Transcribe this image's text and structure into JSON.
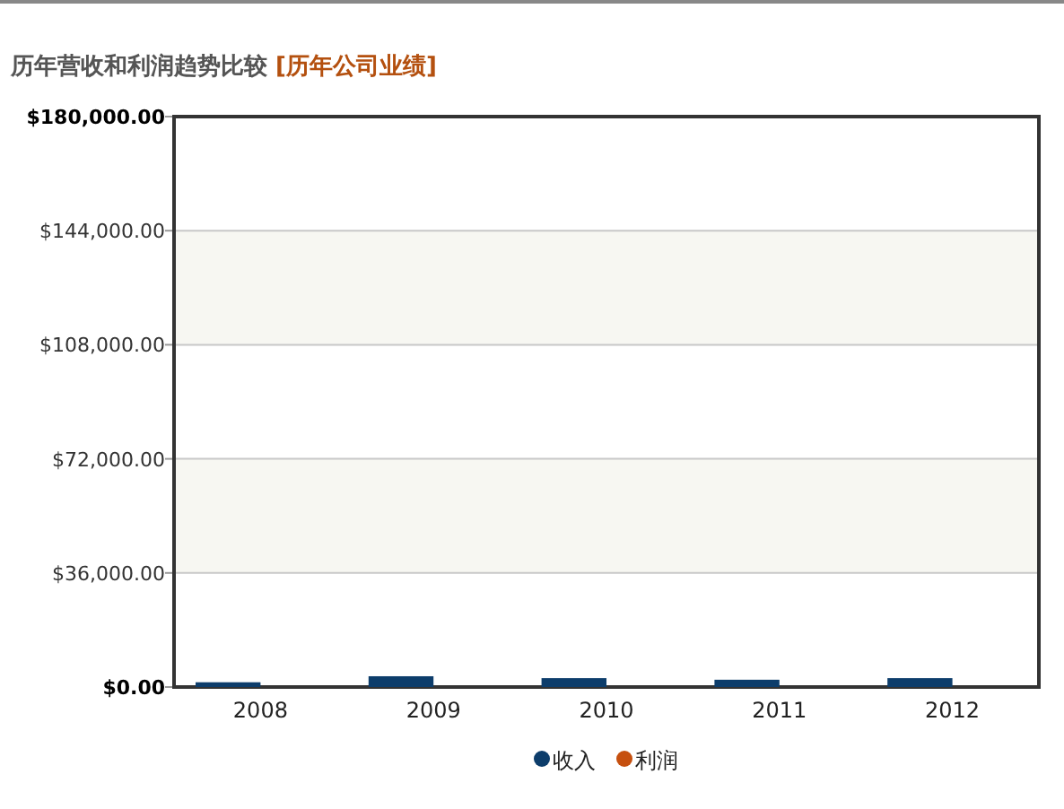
{
  "chart_data": {
    "type": "bar",
    "title": "历年营收和利润趋势比较",
    "subtitle": "[历年公司业绩]",
    "categories": [
      "2008",
      "2009",
      "2010",
      "2011",
      "2012"
    ],
    "series": [
      {
        "name": "收入",
        "color": "#0d3d6b",
        "values": [
          1500,
          3400,
          2800,
          2300,
          2800
        ]
      },
      {
        "name": "利润",
        "color": "#c6500f",
        "values": [
          0,
          0,
          0,
          0,
          0
        ]
      }
    ],
    "ylim": [
      0,
      180000
    ],
    "yticks": [
      {
        "value": 0,
        "label": "$0.00"
      },
      {
        "value": 36000,
        "label": "$36,000.00"
      },
      {
        "value": 72000,
        "label": "$72,000.00"
      },
      {
        "value": 108000,
        "label": "$108,000.00"
      },
      {
        "value": 144000,
        "label": "$144,000.00"
      },
      {
        "value": 180000,
        "label": "$180,000.00"
      }
    ],
    "bands": [
      {
        "axis": "y",
        "from": 36000,
        "to": 72000,
        "color": "#f7f7f2"
      },
      {
        "axis": "y",
        "from": 108000,
        "to": 144000,
        "color": "#f7f7f2"
      }
    ],
    "grid": "y",
    "legend": "bottom"
  }
}
